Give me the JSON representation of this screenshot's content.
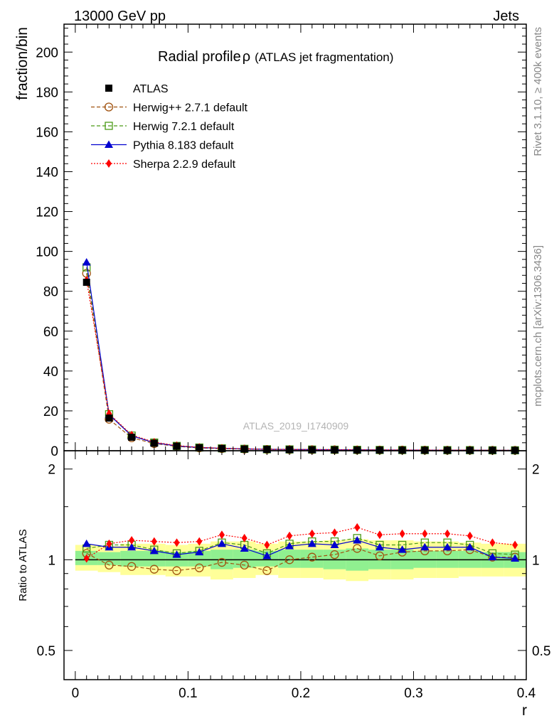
{
  "header": {
    "left": "13000 GeV pp",
    "right": "Jets"
  },
  "side_labels": {
    "rivet": "Rivet 3.1.10, ≥ 400k events",
    "mcplots": "mcplots.cern.ch [arXiv:1306.3436]"
  },
  "watermark": "ATLAS_2019_I1740909",
  "colors": {
    "data": "#000000",
    "herwigpp": "#a0520f",
    "herwig7": "#4a9a16",
    "pythia": "#0000d0",
    "sherpa": "#ff0000",
    "band_inner": "#90f090",
    "band_outer": "#ffff99"
  },
  "chart_data": [
    {
      "type": "line",
      "title": "Radial profile",
      "title_symbol": "ρ",
      "subtitle": "(ATLAS jet fragmentation)",
      "ylabel": "fraction/bin",
      "xlabel": "r",
      "xlim": [
        -0.01,
        0.4
      ],
      "ylim": [
        0,
        214
      ],
      "yticks": [
        0,
        20,
        40,
        60,
        80,
        100,
        120,
        140,
        160,
        180,
        200
      ],
      "x": [
        0.01,
        0.03,
        0.05,
        0.07,
        0.09,
        0.11,
        0.13,
        0.15,
        0.17,
        0.19,
        0.21,
        0.23,
        0.25,
        0.27,
        0.29,
        0.31,
        0.33,
        0.35,
        0.37,
        0.39
      ],
      "series": [
        {
          "name": "ATLAS",
          "key": "data",
          "marker": "square",
          "values": [
            84.5,
            16.4,
            6.8,
            3.8,
            2.3,
            1.5,
            1.1,
            0.85,
            0.7,
            0.58,
            0.5,
            0.44,
            0.38,
            0.34,
            0.31,
            0.28,
            0.26,
            0.24,
            0.22,
            0.2
          ]
        },
        {
          "name": "Herwig++ 2.7.1 default",
          "key": "herwigpp",
          "marker": "circle",
          "dash": "5,3",
          "values": [
            89.0,
            15.8,
            6.5,
            3.6,
            2.2,
            1.4,
            1.08,
            0.82,
            0.65,
            0.58,
            0.51,
            0.46,
            0.41,
            0.35,
            0.33,
            0.3,
            0.28,
            0.26,
            0.22,
            0.2
          ]
        },
        {
          "name": "Herwig 7.2.1 default",
          "key": "herwig7",
          "marker": "open-square",
          "dash": "5,3",
          "values": [
            92.0,
            18.3,
            7.6,
            4.1,
            2.4,
            1.6,
            1.2,
            0.95,
            0.73,
            0.66,
            0.58,
            0.51,
            0.45,
            0.38,
            0.35,
            0.33,
            0.3,
            0.28,
            0.23,
            0.21
          ]
        },
        {
          "name": "Pythia 8.183 default",
          "key": "pythia",
          "marker": "triangle",
          "dash": "",
          "values": [
            94.5,
            18.1,
            7.5,
            4.0,
            2.4,
            1.6,
            1.22,
            0.93,
            0.72,
            0.65,
            0.57,
            0.5,
            0.45,
            0.38,
            0.34,
            0.31,
            0.29,
            0.27,
            0.22,
            0.2
          ]
        },
        {
          "name": "Sherpa 2.2.9 default",
          "key": "sherpa",
          "marker": "diamond",
          "dash": "2,2",
          "values": [
            85.5,
            18.6,
            7.9,
            4.3,
            2.6,
            1.7,
            1.26,
            0.96,
            0.75,
            0.7,
            0.62,
            0.55,
            0.5,
            0.41,
            0.38,
            0.35,
            0.32,
            0.29,
            0.25,
            0.22
          ]
        }
      ]
    },
    {
      "type": "line",
      "ylabel": "Ratio to ATLAS",
      "xlabel": "r",
      "xlim": [
        -0.01,
        0.4
      ],
      "ylim": [
        0.4,
        2.3
      ],
      "yscale": "log",
      "yticks": [
        0.5,
        1,
        2
      ],
      "ytick_labels": [
        "0.5",
        "1",
        "2"
      ],
      "xticks": [
        0,
        0.1,
        0.2,
        0.3,
        0.4
      ],
      "xtick_labels": [
        "0",
        "0.1",
        "0.2",
        "0.3",
        "0.4"
      ],
      "x": [
        0.01,
        0.03,
        0.05,
        0.07,
        0.09,
        0.11,
        0.13,
        0.15,
        0.17,
        0.19,
        0.21,
        0.23,
        0.25,
        0.27,
        0.29,
        0.31,
        0.33,
        0.35,
        0.37,
        0.39
      ],
      "bands": {
        "inner": [
          [
            0.96,
            1.07
          ],
          [
            0.96,
            1.06
          ],
          [
            0.95,
            1.07
          ],
          [
            0.95,
            1.07
          ],
          [
            0.95,
            1.06
          ],
          [
            0.95,
            1.07
          ],
          [
            0.93,
            1.08
          ],
          [
            0.94,
            1.08
          ],
          [
            0.95,
            1.07
          ],
          [
            0.94,
            1.08
          ],
          [
            0.94,
            1.08
          ],
          [
            0.93,
            1.08
          ],
          [
            0.92,
            1.09
          ],
          [
            0.93,
            1.08
          ],
          [
            0.93,
            1.08
          ],
          [
            0.94,
            1.07
          ],
          [
            0.94,
            1.07
          ],
          [
            0.94,
            1.07
          ],
          [
            0.94,
            1.06
          ],
          [
            0.94,
            1.06
          ]
        ],
        "outer": [
          [
            0.92,
            1.12
          ],
          [
            0.91,
            1.11
          ],
          [
            0.89,
            1.13
          ],
          [
            0.89,
            1.13
          ],
          [
            0.88,
            1.12
          ],
          [
            0.88,
            1.13
          ],
          [
            0.86,
            1.15
          ],
          [
            0.87,
            1.15
          ],
          [
            0.89,
            1.13
          ],
          [
            0.87,
            1.15
          ],
          [
            0.87,
            1.15
          ],
          [
            0.86,
            1.16
          ],
          [
            0.85,
            1.17
          ],
          [
            0.86,
            1.16
          ],
          [
            0.86,
            1.16
          ],
          [
            0.87,
            1.15
          ],
          [
            0.87,
            1.15
          ],
          [
            0.88,
            1.14
          ],
          [
            0.88,
            1.13
          ],
          [
            0.88,
            1.13
          ]
        ]
      },
      "series": [
        {
          "name": "Herwig++ 2.7.1 default",
          "key": "herwigpp",
          "marker": "circle",
          "dash": "5,3",
          "values": [
            1.05,
            0.96,
            0.95,
            0.93,
            0.92,
            0.94,
            0.98,
            0.96,
            0.92,
            1.0,
            1.02,
            1.04,
            1.09,
            1.03,
            1.06,
            1.07,
            1.07,
            1.08,
            1.02,
            1.02
          ]
        },
        {
          "name": "Herwig 7.2.1 default",
          "key": "herwig7",
          "marker": "open-square",
          "dash": "5,3",
          "values": [
            1.09,
            1.12,
            1.12,
            1.08,
            1.05,
            1.07,
            1.14,
            1.12,
            1.05,
            1.13,
            1.15,
            1.15,
            1.18,
            1.12,
            1.12,
            1.14,
            1.14,
            1.12,
            1.05,
            1.04
          ]
        },
        {
          "name": "Pythia 8.183 default",
          "key": "pythia",
          "marker": "triangle",
          "dash": "",
          "values": [
            1.13,
            1.1,
            1.1,
            1.07,
            1.04,
            1.06,
            1.13,
            1.09,
            1.03,
            1.11,
            1.13,
            1.12,
            1.16,
            1.1,
            1.08,
            1.1,
            1.1,
            1.1,
            1.02,
            1.01
          ]
        },
        {
          "name": "Sherpa 2.2.9 default",
          "key": "sherpa",
          "marker": "diamond",
          "dash": "2,2",
          "values": [
            1.01,
            1.13,
            1.16,
            1.15,
            1.14,
            1.15,
            1.21,
            1.18,
            1.12,
            1.2,
            1.22,
            1.23,
            1.28,
            1.21,
            1.22,
            1.22,
            1.22,
            1.2,
            1.14,
            1.12
          ]
        }
      ]
    }
  ]
}
